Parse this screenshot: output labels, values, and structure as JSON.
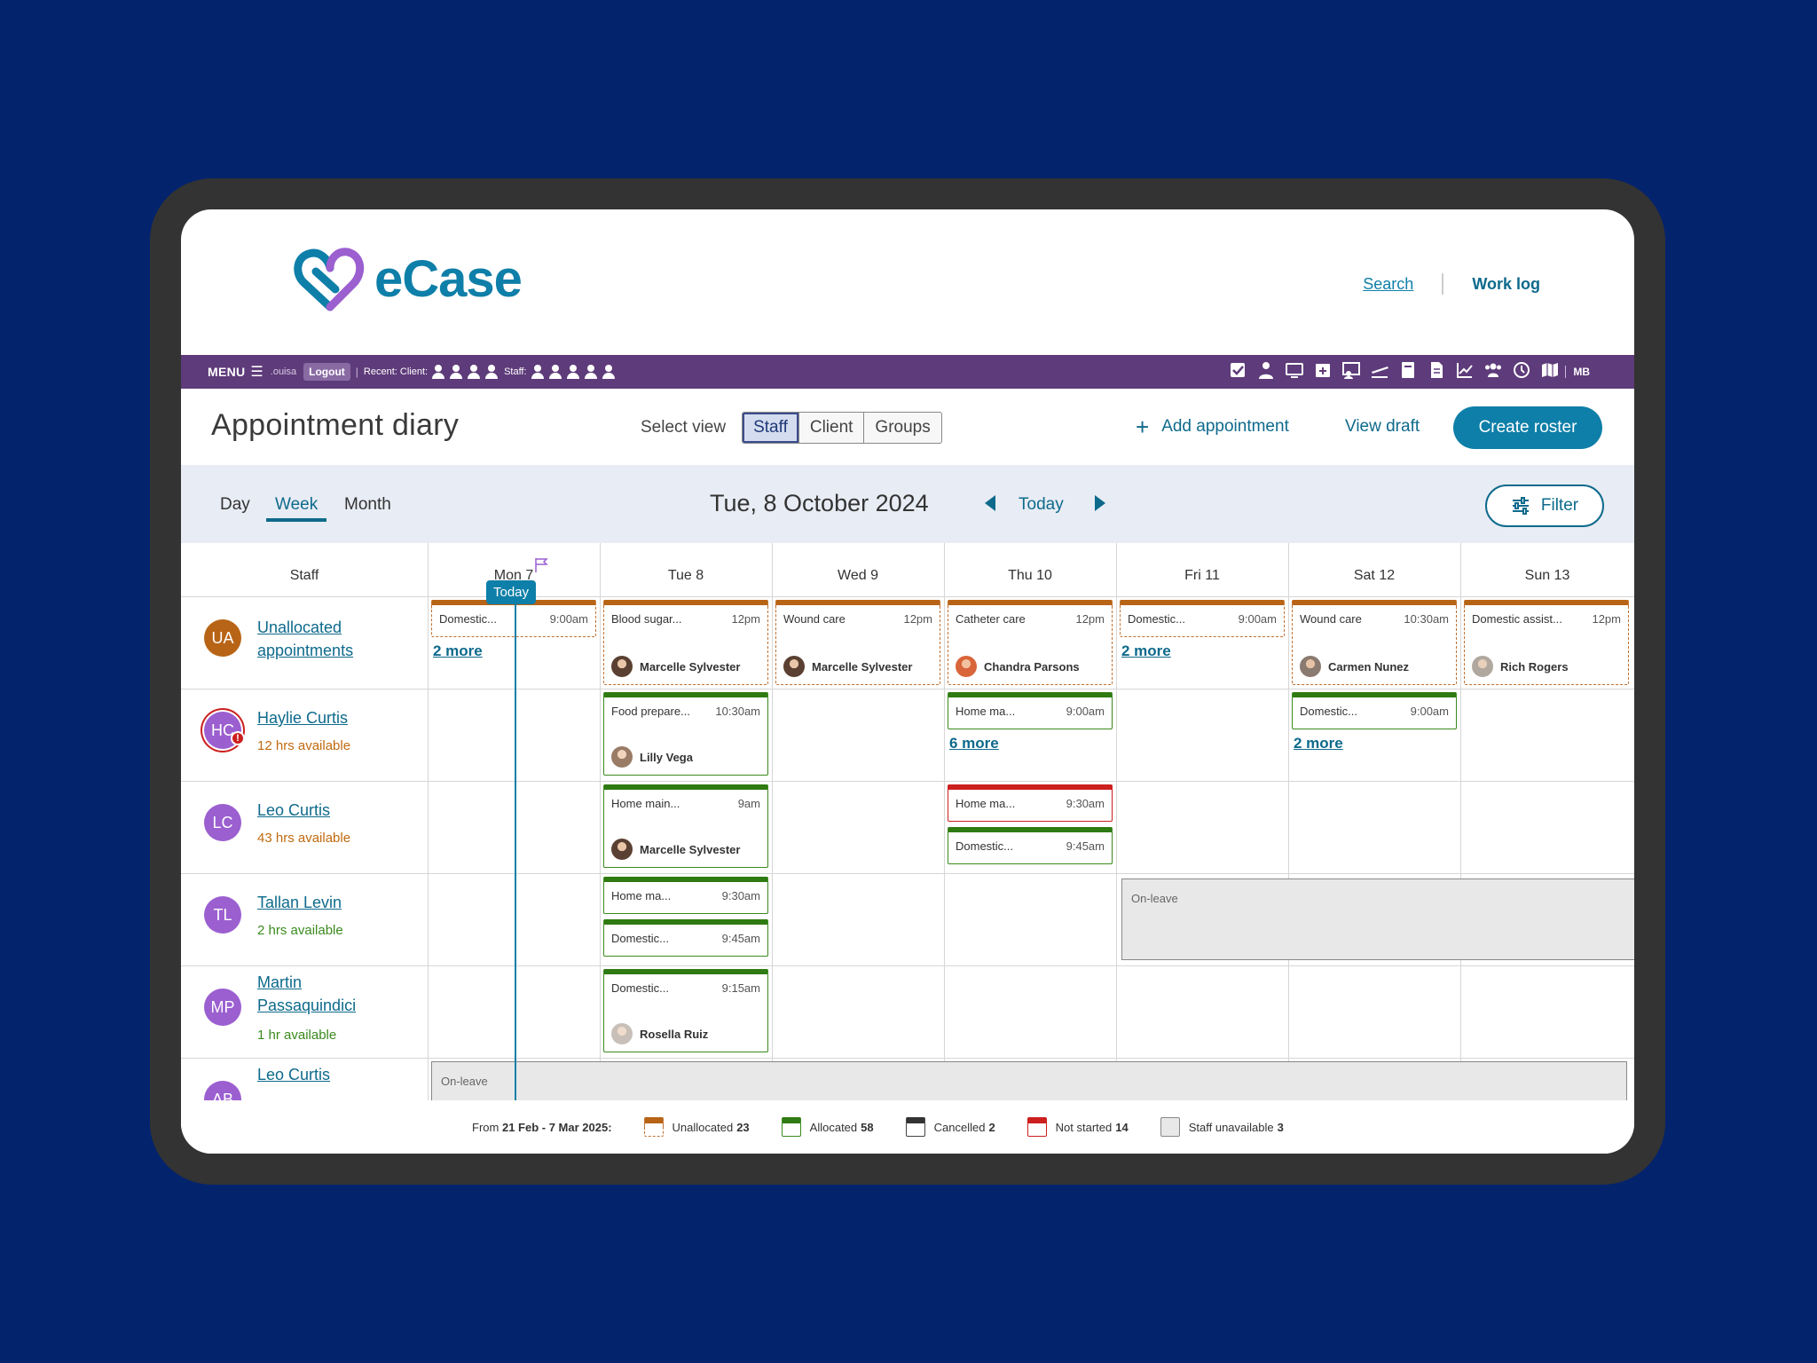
{
  "header": {
    "brand": "eCase",
    "links": {
      "search": "Search",
      "worklog": "Work log"
    }
  },
  "menubar": {
    "menu_label": "MENU",
    "user": ".ouisa",
    "logout": "Logout",
    "recent_client": "Recent: Client:",
    "staff_label": "Staff:",
    "initials": "MB",
    "icons": [
      "checkbox-icon",
      "staff-admin-icon",
      "monitor-icon",
      "calendar-plus-icon",
      "roster-icon",
      "flight-icon",
      "book-icon",
      "document-icon",
      "chart-line-icon",
      "group-icon",
      "clock-icon",
      "map-icon"
    ]
  },
  "titlebar": {
    "title": "Appointment diary",
    "select_view_label": "Select view",
    "views": [
      "Staff",
      "Client",
      "Groups"
    ],
    "active_view": "Staff",
    "add_appointment": "Add appointment",
    "view_draft": "View draft",
    "create_roster": "Create roster"
  },
  "nav": {
    "tabs": [
      "Day",
      "Week",
      "Month"
    ],
    "active_tab": "Week",
    "date": "Tue, 8 October 2024",
    "today": "Today",
    "filter": "Filter"
  },
  "grid": {
    "staff_header": "Staff",
    "days": [
      "Mon 7",
      "Tue 8",
      "Wed 9",
      "Thu 10",
      "Fri 11",
      "Sat 12",
      "Sun 13"
    ],
    "today_badge": "Today",
    "staff": [
      {
        "initials": "UA",
        "name_lines": [
          "Unallocated",
          "appointments"
        ],
        "color": "#b86416"
      },
      {
        "initials": "HC",
        "name": "Haylie Curtis",
        "availability": "12 hrs available",
        "avail_color": "#c06a10",
        "color": "#9b5fd0",
        "alert": "!"
      },
      {
        "initials": "LC",
        "name": "Leo Curtis",
        "availability": "43 hrs available",
        "avail_color": "#c06a10",
        "color": "#9b5fd0"
      },
      {
        "initials": "TL",
        "name": "Tallan Levin",
        "availability": "2 hrs available",
        "avail_color": "#3a8a1e",
        "color": "#9b5fd0"
      },
      {
        "initials": "MP",
        "name_lines": [
          "Martin",
          "Passaquindici"
        ],
        "availability": "1 hr available",
        "avail_color": "#3a8a1e",
        "color": "#9b5fd0"
      },
      {
        "initials": "AB",
        "name": "Leo Curtis",
        "color": "#9b5fd0"
      }
    ],
    "appointments": {
      "ua_mon": {
        "title": "Domestic...",
        "time": "9:00am"
      },
      "ua_tue": {
        "title": "Blood sugar...",
        "time": "12pm",
        "client": "Marcelle Sylvester"
      },
      "ua_wed": {
        "title": "Wound care",
        "time": "12pm",
        "client": "Marcelle Sylvester"
      },
      "ua_thu": {
        "title": "Catheter care",
        "time": "12pm",
        "client": "Chandra Parsons"
      },
      "ua_fri": {
        "title": "Domestic...",
        "time": "9:00am"
      },
      "ua_sat": {
        "title": "Wound care",
        "time": "10:30am",
        "client": "Carmen Nunez"
      },
      "ua_sun": {
        "title": "Domestic assist...",
        "time": "12pm",
        "client": "Rich Rogers"
      },
      "hc_tue": {
        "title": "Food prepare...",
        "time": "10:30am",
        "client": "Lilly Vega"
      },
      "hc_thu": {
        "title": "Home ma...",
        "time": "9:00am"
      },
      "hc_sat": {
        "title": "Domestic...",
        "time": "9:00am"
      },
      "lc_tue": {
        "title": "Home main...",
        "time": "9am",
        "client": "Marcelle Sylvester"
      },
      "lc_thu1": {
        "title": "Home ma...",
        "time": "9:30am"
      },
      "lc_thu2": {
        "title": "Domestic...",
        "time": "9:45am"
      },
      "tl_tue1": {
        "title": "Home ma...",
        "time": "9:30am"
      },
      "tl_tue2": {
        "title": "Domestic...",
        "time": "9:45am"
      },
      "mp_tue": {
        "title": "Domestic...",
        "time": "9:15am",
        "client": "Rosella Ruiz"
      }
    },
    "more": {
      "ua_mon": "2 more",
      "ua_fri": "2 more",
      "hc_thu": "6 more",
      "hc_sat": "2 more"
    },
    "on_leave": "On-leave"
  },
  "legend": {
    "range_prefix": "From",
    "range": "21 Feb - 7 Mar 2025:",
    "items": [
      {
        "label": "Unallocated",
        "count": "23"
      },
      {
        "label": "Allocated",
        "count": "58"
      },
      {
        "label": "Cancelled",
        "count": "2"
      },
      {
        "label": "Not started",
        "count": "14"
      },
      {
        "label": "Staff unavailable",
        "count": "3"
      }
    ]
  },
  "colors": {
    "brand": "#0e7fa8",
    "menubar": "#5e3b7a",
    "unallocated": "#b86416",
    "allocated": "#2f7a12",
    "not_started": "#cc1f1f"
  }
}
